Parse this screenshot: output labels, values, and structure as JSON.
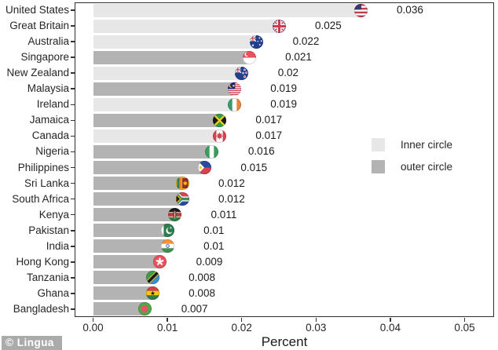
{
  "watermark": {
    "label": "© Lingua"
  },
  "chart_data": {
    "type": "bar",
    "orientation": "horizontal",
    "title": "",
    "xlabel": "Percent",
    "ylabel": "",
    "xlim": [
      0,
      0.05
    ],
    "x_ticks": [
      "0.00",
      "0.01",
      "0.02",
      "0.03",
      "0.04",
      "0.05"
    ],
    "grid": false,
    "legend": {
      "position": "right-middle",
      "entries": [
        {
          "label": "Inner circle",
          "group": "inner",
          "color": "#e7e7e7"
        },
        {
          "label": "outer circle",
          "group": "outer",
          "color": "#b3b3b3"
        }
      ]
    },
    "bar_colors": {
      "inner": "#e7e7e7",
      "outer": "#b3b3b3"
    },
    "rows": [
      {
        "label": "United States",
        "value": 0.036,
        "value_label": "0.036",
        "group": "inner",
        "flag_icon": "us-flag"
      },
      {
        "label": "Great Britain",
        "value": 0.025,
        "value_label": "0.025",
        "group": "inner",
        "flag_icon": "great-britain-flag"
      },
      {
        "label": "Australia",
        "value": 0.022,
        "value_label": "0.022",
        "group": "inner",
        "flag_icon": "australia-flag"
      },
      {
        "label": "Singapore",
        "value": 0.021,
        "value_label": "0.021",
        "group": "outer",
        "flag_icon": "singapore-flag"
      },
      {
        "label": "New Zealand",
        "value": 0.02,
        "value_label": "0.02",
        "group": "inner",
        "flag_icon": "new-zealand-flag"
      },
      {
        "label": "Malaysia",
        "value": 0.019,
        "value_label": "0.019",
        "group": "outer",
        "flag_icon": "malaysia-flag"
      },
      {
        "label": "Ireland",
        "value": 0.019,
        "value_label": "0.019",
        "group": "inner",
        "flag_icon": "ireland-flag"
      },
      {
        "label": "Jamaica",
        "value": 0.017,
        "value_label": "0.017",
        "group": "outer",
        "flag_icon": "jamaica-flag"
      },
      {
        "label": "Canada",
        "value": 0.017,
        "value_label": "0.017",
        "group": "inner",
        "flag_icon": "canada-flag"
      },
      {
        "label": "Nigeria",
        "value": 0.016,
        "value_label": "0.016",
        "group": "outer",
        "flag_icon": "nigeria-flag"
      },
      {
        "label": "Philippines",
        "value": 0.015,
        "value_label": "0.015",
        "group": "outer",
        "flag_icon": "philippines-flag"
      },
      {
        "label": "Sri Lanka",
        "value": 0.012,
        "value_label": "0.012",
        "group": "outer",
        "flag_icon": "sri-lanka-flag"
      },
      {
        "label": "South Africa",
        "value": 0.012,
        "value_label": "0.012",
        "group": "outer",
        "flag_icon": "south-africa-flag"
      },
      {
        "label": "Kenya",
        "value": 0.011,
        "value_label": "0.011",
        "group": "outer",
        "flag_icon": "kenya-flag"
      },
      {
        "label": "Pakistan",
        "value": 0.01,
        "value_label": "0.01",
        "group": "outer",
        "flag_icon": "pakistan-flag"
      },
      {
        "label": "India",
        "value": 0.01,
        "value_label": "0.01",
        "group": "outer",
        "flag_icon": "india-flag"
      },
      {
        "label": "Hong Kong",
        "value": 0.009,
        "value_label": "0.009",
        "group": "outer",
        "flag_icon": "hong-kong-flag"
      },
      {
        "label": "Tanzania",
        "value": 0.008,
        "value_label": "0.008",
        "group": "outer",
        "flag_icon": "tanzania-flag"
      },
      {
        "label": "Ghana",
        "value": 0.008,
        "value_label": "0.008",
        "group": "outer",
        "flag_icon": "ghana-flag"
      },
      {
        "label": "Bangladesh",
        "value": 0.007,
        "value_label": "0.007",
        "group": "outer",
        "flag_icon": "bangladesh-flag"
      }
    ]
  }
}
